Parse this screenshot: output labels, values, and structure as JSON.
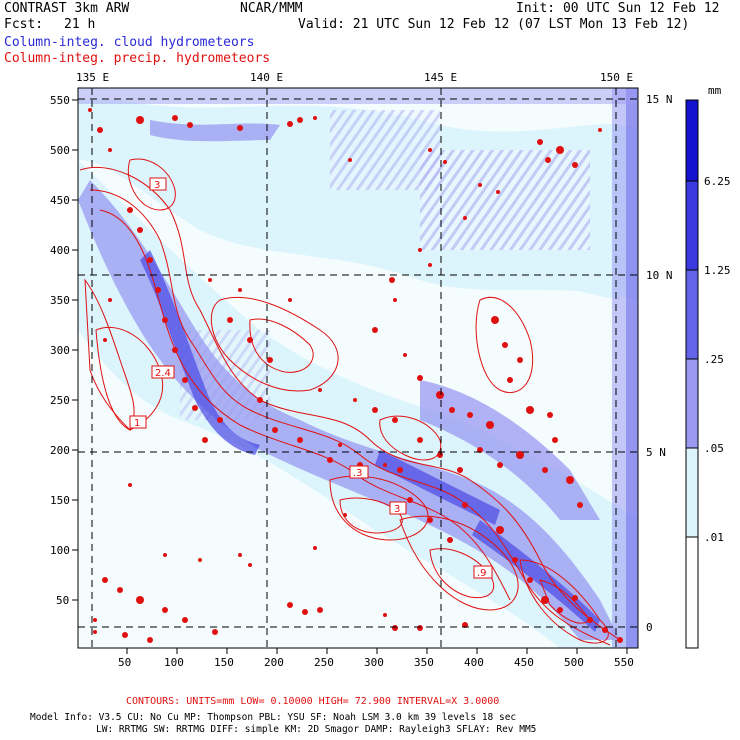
{
  "header": {
    "model": "CONTRAST  3km ARW",
    "center": "NCAR/MMM",
    "init": "Init: 00 UTC Sun 12 Feb 12",
    "fcst_label": "Fcst:",
    "fcst_value": "21 h",
    "valid": "Valid: 21 UTC Sun 12 Feb 12 (07 LST Mon 13 Feb 12)",
    "field_cloud": "Column-integ. cloud hydrometeors",
    "field_precip": "Column-integ. precip. hydrometeors"
  },
  "axes": {
    "lon_labels": [
      "135 E",
      "140 E",
      "145 E",
      "150 E"
    ],
    "lat_labels": [
      "15 N",
      "10 N",
      "5 N",
      "0"
    ],
    "x_ticks": [
      "50",
      "100",
      "150",
      "200",
      "250",
      "300",
      "350",
      "400",
      "450",
      "500",
      "550"
    ],
    "y_ticks": [
      "550",
      "500",
      "450",
      "400",
      "350",
      "300",
      "250",
      "200",
      "150",
      "100",
      "50"
    ]
  },
  "colorbar": {
    "unit": "mm",
    "labels": [
      "6.25",
      "1.25",
      ".25",
      ".05",
      ".01"
    ],
    "colors": [
      "#1414d0",
      "#3a3ae0",
      "#6464ea",
      "#9a9af2",
      "#dcf4fc",
      "#ffffff"
    ]
  },
  "contour_labels": [
    "3",
    "2.4",
    "1",
    ".3",
    "3",
    ".9"
  ],
  "footer": {
    "contours": "CONTOURS:  UNITS=mm  LOW= 0.10000      HIGH= 72.900      INTERVAL=X  3.0000",
    "model_info": "Model Info: V3.5      CU: No Cu      MP: Thompson     PBL: YSU       SF: Noah LSM      3.0 km   39 levels    18 sec",
    "physics": "LW: RRTMG    SW: RRTMG   DIFF: simple KM: 2D Smagor DAMP: Rayleigh3   SFLAY: Rev MM5"
  }
}
